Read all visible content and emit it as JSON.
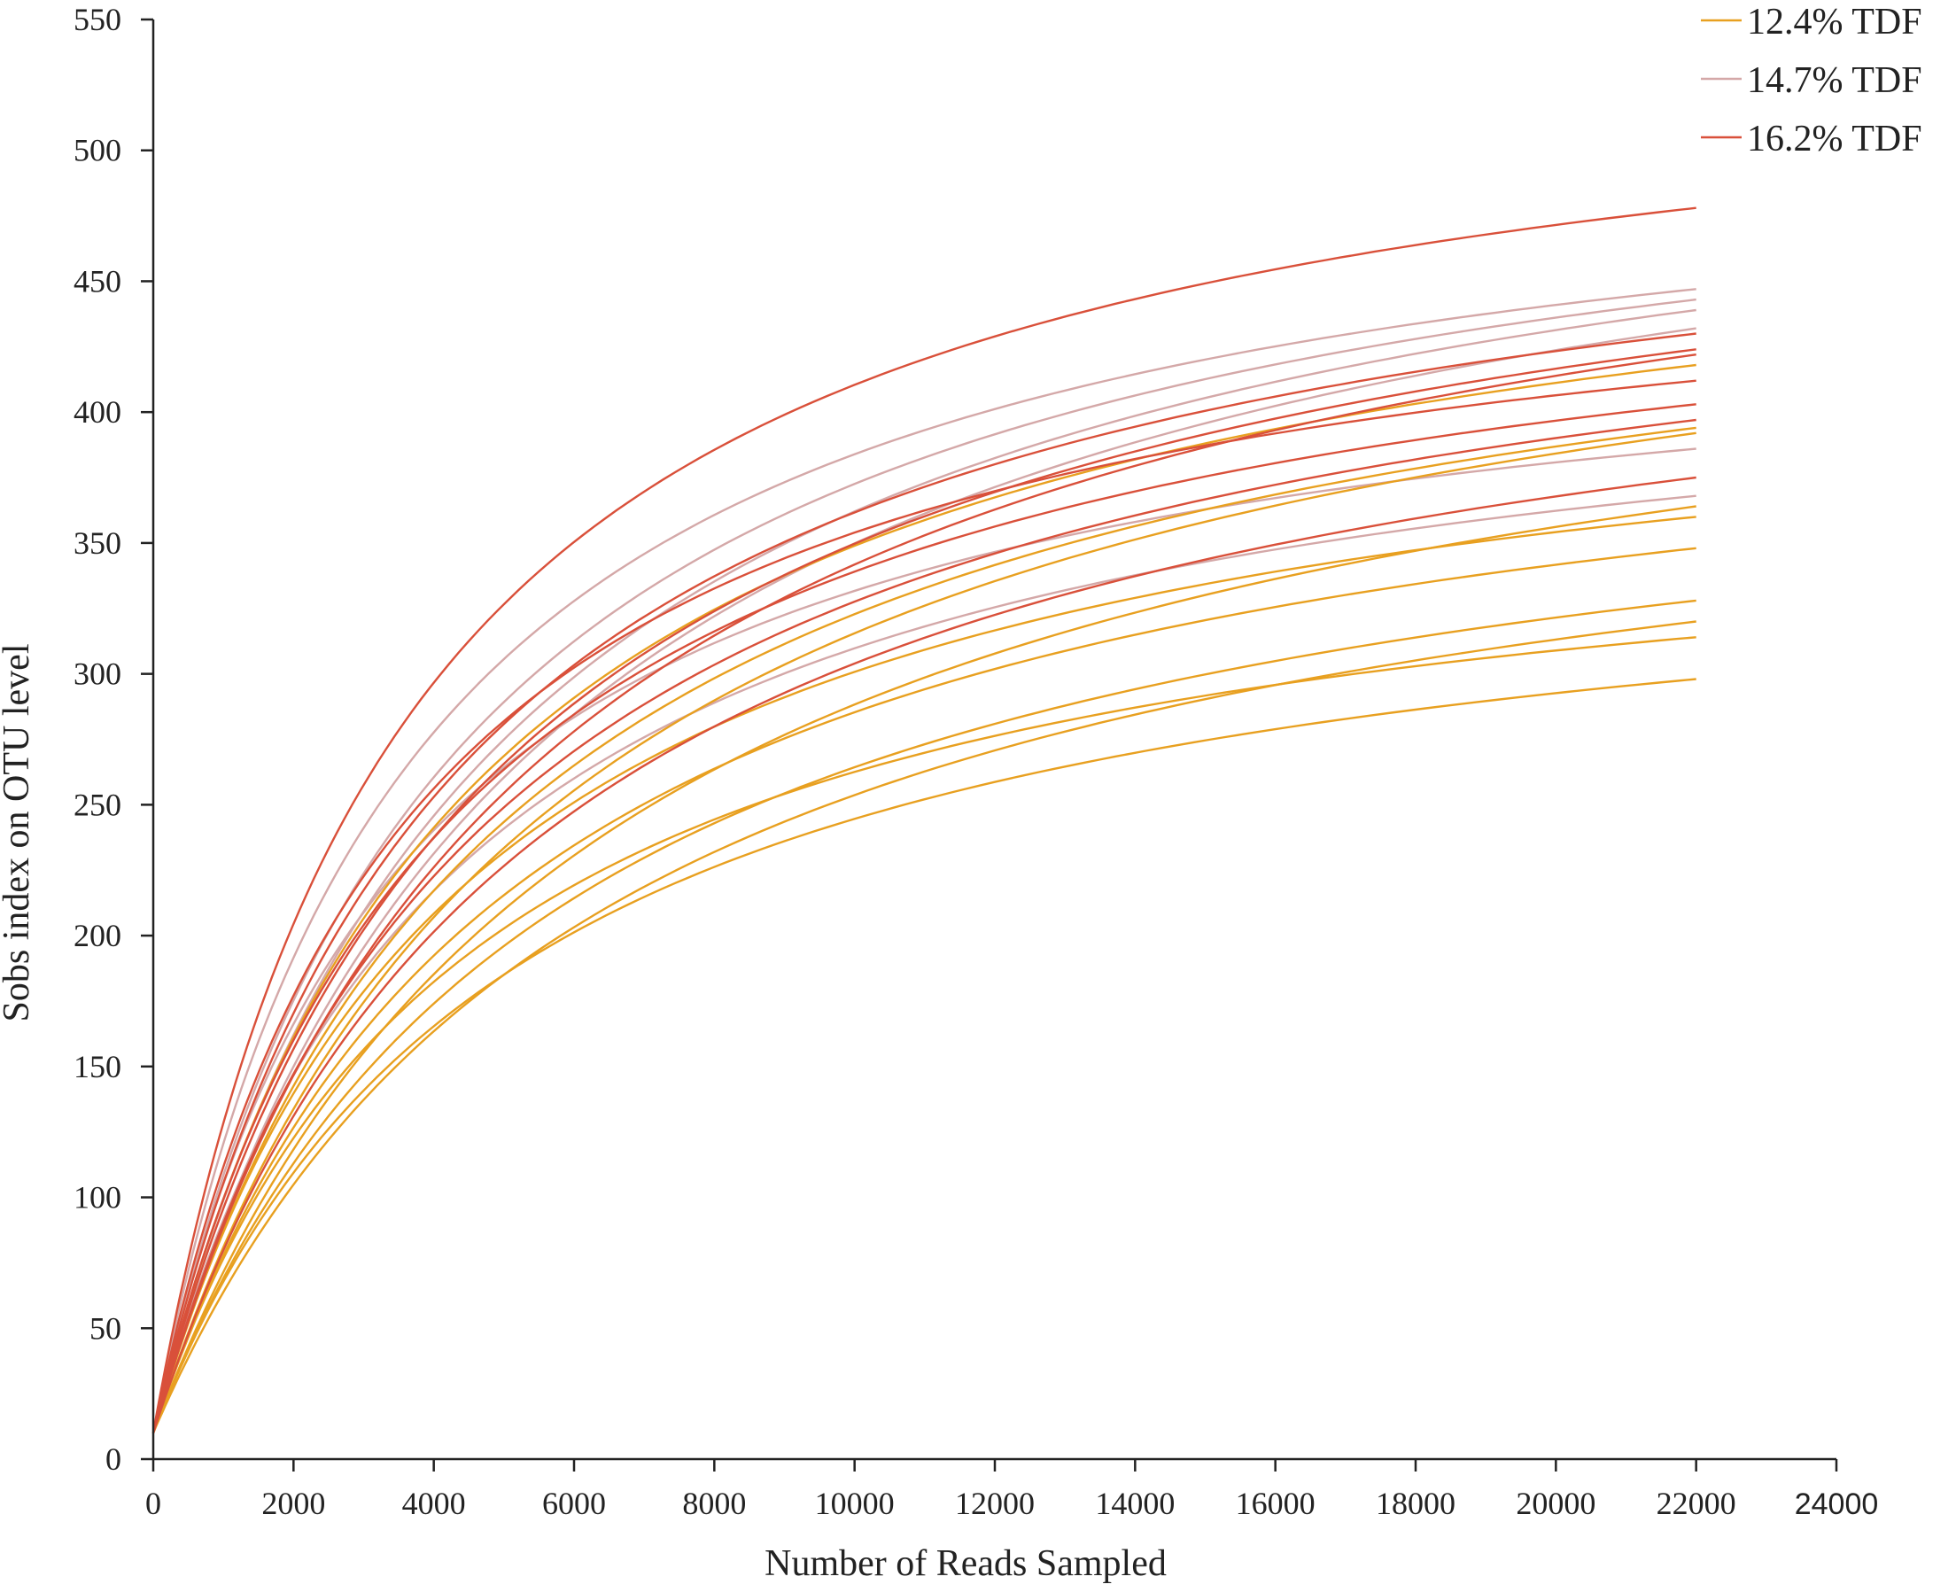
{
  "chart_data": {
    "type": "line",
    "xlabel": "Number of Reads Sampled",
    "ylabel": "Sobs index on OTU level",
    "xlim": [
      0,
      24000
    ],
    "ylim": [
      0,
      550
    ],
    "x_ticks": [
      "0",
      "2000",
      "4000",
      "6000",
      "8000",
      "10000",
      "12000",
      "14000",
      "16000",
      "18000",
      "20000",
      "22000",
      "24000"
    ],
    "y_ticks": [
      "0",
      "50",
      "100",
      "150",
      "200",
      "250",
      "300",
      "350",
      "400",
      "450",
      "500",
      "550"
    ],
    "grid": false,
    "legend_position": "top-right",
    "colors": {
      "12.4% TDF": "#E8A020",
      "14.7% TDF": "#D4A8A8",
      "16.2% TDF": "#D9503A"
    },
    "x_max_sampled": 22000,
    "groups": [
      {
        "name": "12.4% TDF",
        "color": "#E8A020",
        "final_values": [
          418,
          394,
          392,
          364,
          360,
          348,
          328,
          320,
          314,
          298
        ]
      },
      {
        "name": "14.7% TDF",
        "color": "#D4A8A8",
        "final_values": [
          447,
          443,
          439,
          432,
          386,
          368
        ]
      },
      {
        "name": "16.2% TDF",
        "color": "#D9503A",
        "final_values": [
          478,
          430,
          424,
          422,
          412,
          403,
          397,
          375
        ]
      }
    ]
  }
}
